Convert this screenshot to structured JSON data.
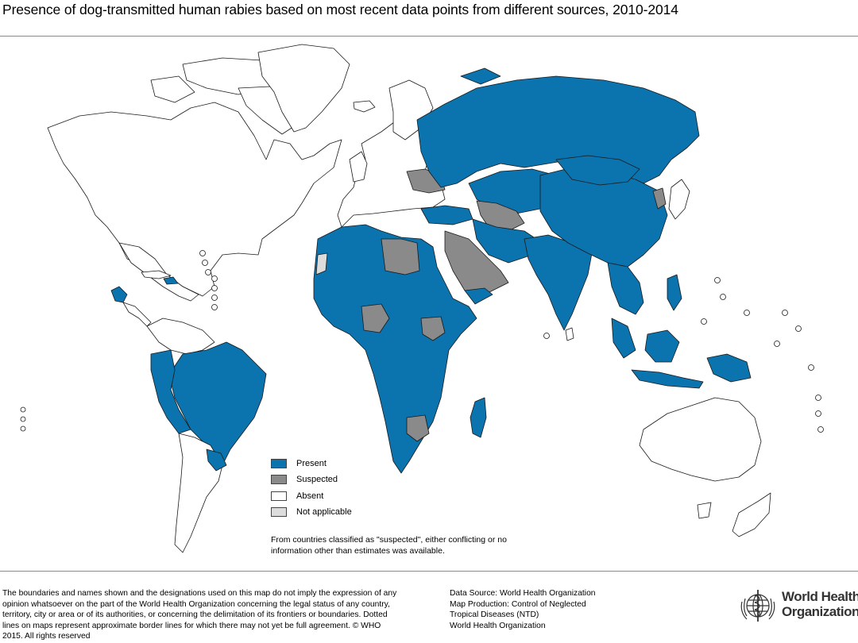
{
  "title": "Presence of dog-transmitted human rabies based on most recent data points from different sources, 2010-2014",
  "colors": {
    "present": "#0b73ad",
    "suspected": "#8a8a8a",
    "absent": "#ffffff",
    "not_applicable": "#dcdcdc",
    "border": "#1a1a1a"
  },
  "legend": {
    "items": [
      {
        "key": "present",
        "label": "Present",
        "color": "#0b73ad"
      },
      {
        "key": "suspected",
        "label": "Suspected",
        "color": "#8a8a8a"
      },
      {
        "key": "absent",
        "label": "Absent",
        "color": "#ffffff"
      },
      {
        "key": "not_applicable",
        "label": "Not applicable",
        "color": "#dcdcdc"
      }
    ],
    "note": "From countries classified as \"suspected\", either conflicting or no information other than estimates was available."
  },
  "disclaimer": "The boundaries and names shown and the designations used on this map do not imply the expression of any opinion whatsoever on the part of the World Health Organization concerning the legal status of any country, territory, city or area or of its authorities, or concerning the delimitation of its frontiers or boundaries. Dotted lines on maps represent approximate border lines for which there may not yet be full agreement. © WHO 2015. All rights reserved",
  "source": {
    "lines": [
      "Data Source: World Health Organization",
      "Map Production: Control of Neglected",
      "Tropical Diseases (NTD)",
      "World Health Organization"
    ]
  },
  "logo": {
    "name_line1": "World Health",
    "name_line2": "Organization",
    "icon": "who-emblem-icon"
  }
}
